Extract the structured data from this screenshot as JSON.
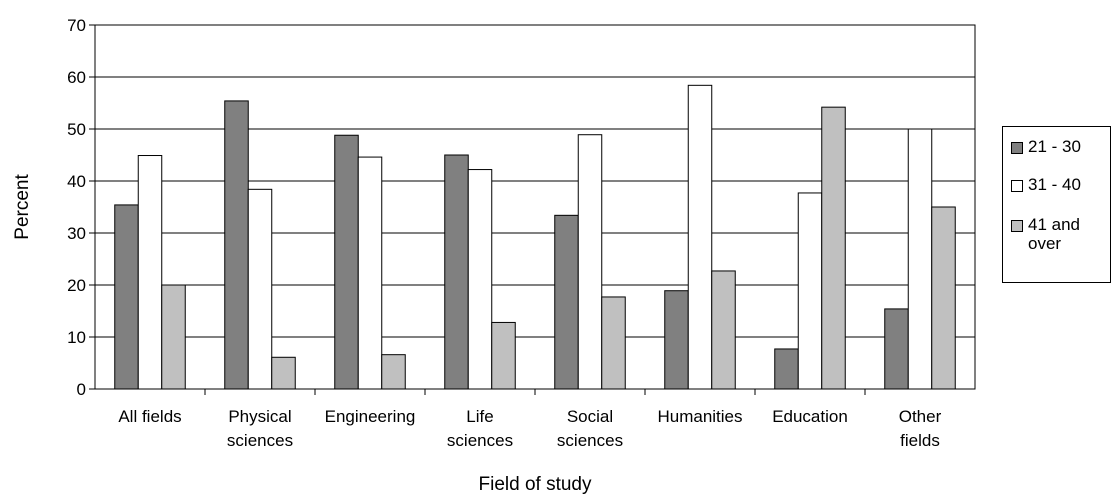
{
  "chart_data": {
    "type": "bar",
    "categories": [
      [
        "All fields"
      ],
      [
        "Physical",
        "sciences"
      ],
      [
        "Engineering"
      ],
      [
        "Life",
        "sciences"
      ],
      [
        "Social",
        "sciences"
      ],
      [
        "Humanities"
      ],
      [
        "Education"
      ],
      [
        "Other",
        "fields"
      ]
    ],
    "series": [
      {
        "name": "21 - 30",
        "color": "#808080",
        "values": [
          35.4,
          55.4,
          48.8,
          45.0,
          33.4,
          18.9,
          7.7,
          15.4
        ]
      },
      {
        "name": "31 - 40",
        "color": "#ffffff",
        "values": [
          44.9,
          38.4,
          44.6,
          42.2,
          48.9,
          58.4,
          37.7,
          50.0
        ]
      },
      {
        "name": "41 and over",
        "color": "#c0c0c0",
        "values": [
          20.0,
          6.1,
          6.6,
          12.8,
          17.7,
          22.7,
          54.2,
          35.0
        ]
      }
    ],
    "xlabel": "Field of study",
    "ylabel": "Percent",
    "ylim": [
      0,
      70
    ],
    "yticks": [
      0,
      10,
      20,
      30,
      40,
      50,
      60,
      70
    ],
    "grid": true,
    "legend": "right"
  }
}
